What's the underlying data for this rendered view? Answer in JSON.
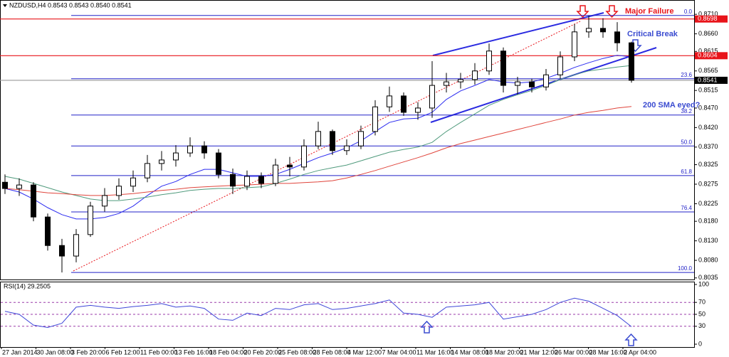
{
  "chart_data": {
    "type": "candlestick",
    "header": "NZDUSD,H4  0.8543 0.8543 0.8540 0.8541",
    "xlabels": [
      "27 Jan 2014",
      "30 Jan 08:00",
      "3 Feb 20:00",
      "6 Feb 12:00",
      "11 Feb 00:00",
      "13 Feb 16:00",
      "18 Feb 04:00",
      "20 Feb 20:00",
      "25 Feb 08:00",
      "28 Feb 08:00",
      "4 Mar 12:00",
      "7 Mar 04:00",
      "11 Mar 16:00",
      "14 Mar 08:00",
      "18 Mar 20:00",
      "21 Mar 12:00",
      "26 Mar 00:00",
      "28 Mar 16:00",
      "2 Apr 04:00"
    ],
    "ylim": [
      0.8031,
      0.8743
    ],
    "yticks": [
      {
        "value": 0.871,
        "label": "0.8710"
      },
      {
        "value": 0.866,
        "label": "0.8660"
      },
      0.8615,
      0.8565,
      0.8515,
      {
        "value": 0.847,
        "label": "0.8470"
      },
      {
        "value": 0.842,
        "label": "0.8420"
      },
      {
        "value": 0.837,
        "label": "0.8370"
      },
      0.8325,
      0.8275,
      0.8225,
      {
        "value": 0.818,
        "label": "0.8180"
      },
      {
        "value": 0.813,
        "label": "0.8130"
      },
      {
        "value": 0.808,
        "label": "0.8080"
      },
      0.8035
    ],
    "candle_color": "#000000",
    "candles": {
      "open": [
        0.828,
        0.8264,
        0.8273,
        0.8191,
        0.8118,
        0.8091,
        0.8146,
        0.8219,
        0.8246,
        0.827,
        0.8291,
        0.8328,
        0.8337,
        0.8355,
        0.8373,
        0.8355,
        0.83,
        0.827,
        0.8295,
        0.8277,
        0.8324,
        0.8319,
        0.8373,
        0.841,
        0.8361,
        0.8373,
        0.841,
        0.8473,
        0.8501,
        0.8459,
        0.847,
        0.8528,
        0.8537,
        0.8543,
        0.8565,
        0.8616,
        0.8528,
        0.8537,
        0.8524,
        0.8555,
        0.8601,
        0.8665,
        0.8674,
        0.8665,
        0.8637
      ],
      "high": [
        0.83,
        0.829,
        0.828,
        0.82,
        0.8135,
        0.816,
        0.823,
        0.8265,
        0.829,
        0.831,
        0.835,
        0.836,
        0.8375,
        0.8395,
        0.8385,
        0.8365,
        0.8315,
        0.831,
        0.8305,
        0.834,
        0.8345,
        0.839,
        0.8435,
        0.8415,
        0.839,
        0.8425,
        0.849,
        0.8525,
        0.851,
        0.8485,
        0.859,
        0.856,
        0.856,
        0.8585,
        0.8635,
        0.8625,
        0.855,
        0.8545,
        0.857,
        0.8615,
        0.8685,
        0.8706,
        0.87,
        0.869,
        0.864
      ],
      "low": [
        0.825,
        0.8245,
        0.818,
        0.8105,
        0.8049,
        0.8075,
        0.814,
        0.8205,
        0.8235,
        0.8255,
        0.828,
        0.831,
        0.832,
        0.8345,
        0.834,
        0.829,
        0.825,
        0.826,
        0.8265,
        0.827,
        0.8295,
        0.831,
        0.8365,
        0.835,
        0.835,
        0.8365,
        0.84,
        0.846,
        0.845,
        0.844,
        0.8445,
        0.851,
        0.852,
        0.853,
        0.8555,
        0.851,
        0.8505,
        0.851,
        0.8515,
        0.8545,
        0.859,
        0.865,
        0.865,
        0.8615,
        0.8535
      ],
      "close": [
        0.8264,
        0.8273,
        0.8191,
        0.8118,
        0.8091,
        0.8146,
        0.8219,
        0.8246,
        0.827,
        0.8291,
        0.8328,
        0.8337,
        0.8355,
        0.8373,
        0.8355,
        0.83,
        0.827,
        0.8295,
        0.8277,
        0.8324,
        0.8319,
        0.8373,
        0.841,
        0.8361,
        0.8373,
        0.841,
        0.8473,
        0.8501,
        0.8459,
        0.847,
        0.8528,
        0.8537,
        0.8543,
        0.8565,
        0.8616,
        0.8528,
        0.8537,
        0.8524,
        0.8555,
        0.8601,
        0.8665,
        0.8674,
        0.8665,
        0.8637,
        0.8541
      ]
    },
    "moving_averages": [
      {
        "color": "#2b2bf0",
        "values": [
          0.8264,
          0.8255,
          0.8237,
          0.8215,
          0.8197,
          0.8186,
          0.8186,
          0.819,
          0.82,
          0.8219,
          0.8246,
          0.827,
          0.8282,
          0.83,
          0.8313,
          0.8313,
          0.8304,
          0.8295,
          0.8295,
          0.83,
          0.8313,
          0.8328,
          0.8343,
          0.8355,
          0.8368,
          0.8386,
          0.841,
          0.8433,
          0.8442,
          0.8444,
          0.8459,
          0.8492,
          0.8514,
          0.8528,
          0.8543,
          0.8537,
          0.8534,
          0.8537,
          0.8546,
          0.8559,
          0.8574,
          0.8586,
          0.8597,
          0.8605,
          0.8601
        ]
      },
      {
        "color": "#4f9a7c",
        "values": [
          0.8295,
          0.8288,
          0.8277,
          0.8266,
          0.8255,
          0.8246,
          0.8237,
          0.8233,
          0.8233,
          0.8237,
          0.8242,
          0.8248,
          0.8253,
          0.8259,
          0.8262,
          0.8264,
          0.8264,
          0.8266,
          0.8268,
          0.8277,
          0.8288,
          0.83,
          0.831,
          0.8317,
          0.8324,
          0.8335,
          0.8346,
          0.8357,
          0.8364,
          0.837,
          0.8382,
          0.841,
          0.8433,
          0.8455,
          0.8477,
          0.8492,
          0.8504,
          0.8515,
          0.8528,
          0.8543,
          0.8555,
          0.8565,
          0.857,
          0.8575,
          0.8579
        ]
      },
      {
        "color": "#e0453c",
        "values": [
          0.8264,
          0.8261,
          0.8257,
          0.8253,
          0.8251,
          0.8248,
          0.8246,
          0.8246,
          0.8248,
          0.8251,
          0.8255,
          0.8259,
          0.8262,
          0.8266,
          0.8268,
          0.827,
          0.8272,
          0.8273,
          0.8275,
          0.8277,
          0.8277,
          0.8279,
          0.8281,
          0.8284,
          0.8291,
          0.83,
          0.831,
          0.8321,
          0.8332,
          0.8343,
          0.8355,
          0.8368,
          0.8379,
          0.8388,
          0.8397,
          0.8406,
          0.8415,
          0.8424,
          0.8433,
          0.8442,
          0.8452,
          0.8459,
          0.8464,
          0.847,
          0.8474
        ]
      }
    ],
    "hlines": [
      {
        "value": 0.8698,
        "color": "#e8141a",
        "badge": "#e8141a"
      },
      {
        "value": 0.8604,
        "color": "#e8141a",
        "badge": "#e8141a"
      },
      {
        "value": 0.8541,
        "color": "#9a9a9a",
        "badge": "#000000"
      }
    ],
    "fib_color": "#2222c8",
    "fib_levels": [
      {
        "label": "0.0",
        "price": 0.8707
      },
      {
        "label": "23.6",
        "price": 0.8545
      },
      {
        "label": "38.2",
        "price": 0.8452
      },
      {
        "label": "50.0",
        "price": 0.8373
      },
      {
        "label": "61.8",
        "price": 0.8297
      },
      {
        "label": "76.4",
        "price": 0.8204
      },
      {
        "label": "100.0",
        "price": 0.8049
      }
    ],
    "annotations": [
      {
        "text": "Major Failure",
        "color": "#e8141a"
      },
      {
        "text": "Critical Break",
        "color": "#3a4bd0"
      },
      {
        "text": "200 SMA eyed?",
        "color": "#3a4bd0"
      }
    ],
    "rsi": {
      "title": "RSI(14) 29.2505",
      "color": "#3e46d8",
      "level_color": "#9a3aa8",
      "ylim": [
        0,
        100
      ],
      "yticks": [
        100,
        70,
        50,
        30,
        0
      ],
      "values": [
        55,
        50,
        32,
        28,
        35,
        62,
        65,
        62,
        60,
        63,
        65,
        68,
        62,
        64,
        60,
        42,
        40,
        52,
        48,
        60,
        58,
        66,
        68,
        58,
        60,
        64,
        68,
        74,
        52,
        50,
        45,
        62,
        64,
        66,
        70,
        42,
        46,
        50,
        58,
        70,
        77,
        72,
        60,
        48,
        29.25
      ]
    }
  }
}
